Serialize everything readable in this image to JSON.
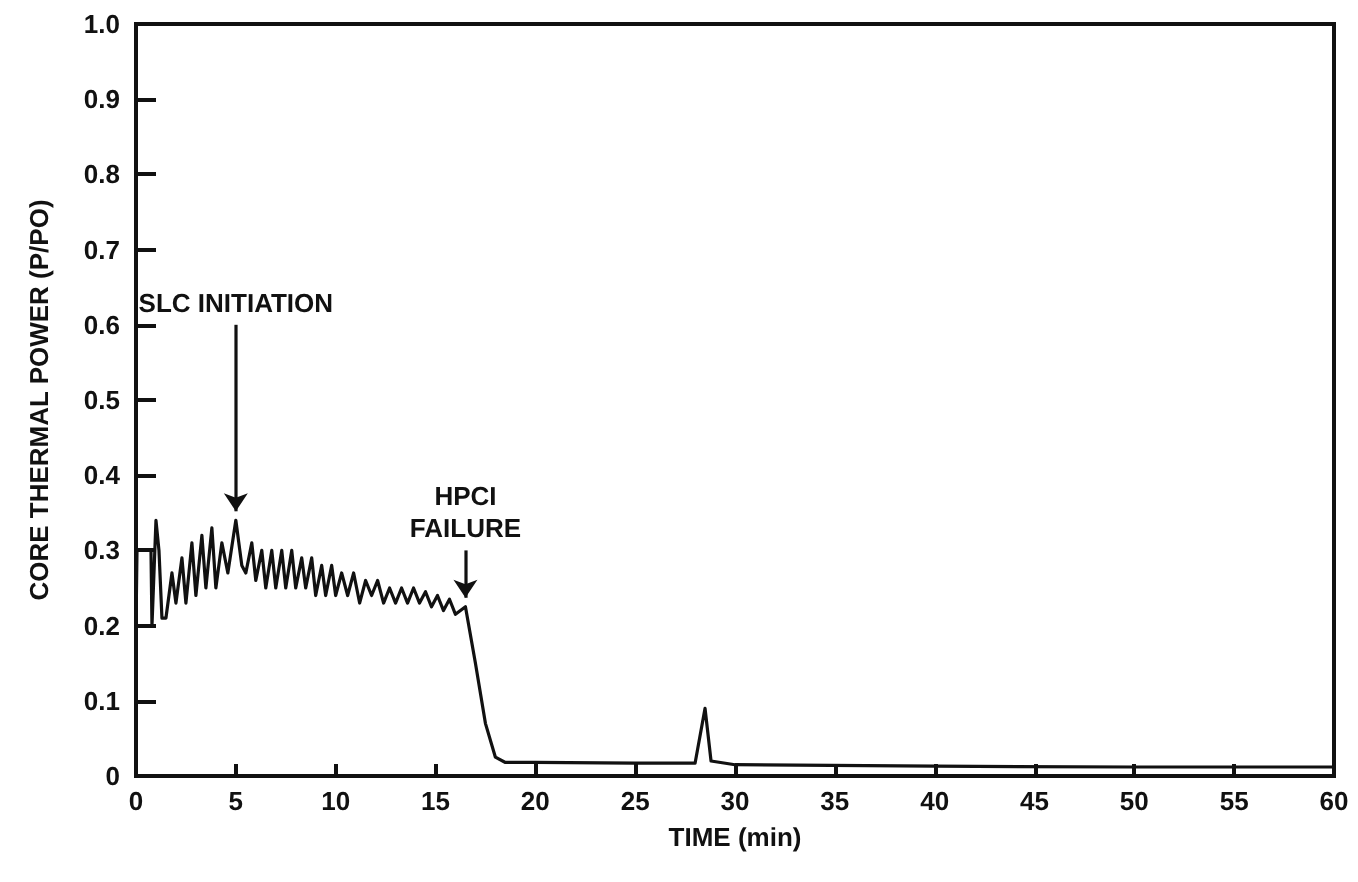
{
  "chart_data": {
    "type": "line",
    "xlabel": "TIME (min)",
    "ylabel": "CORE THERMAL POWER (P/PO)",
    "xlim": [
      0,
      60
    ],
    "xticks": [
      0,
      5,
      10,
      15,
      20,
      25,
      30,
      35,
      40,
      45,
      50,
      55,
      60
    ],
    "ylim": [
      0,
      1.0
    ],
    "yticks": [
      0,
      0.1,
      0.2,
      0.3,
      0.4,
      0.5,
      0.6,
      0.7,
      0.8,
      0.9,
      {
        "value": 1.0,
        "label": "1.0"
      }
    ],
    "grid": false,
    "marker": "none",
    "line_style": "solid",
    "annotations": [
      {
        "text": "SLC INITIATION",
        "x": 5,
        "y": 0.34
      },
      {
        "text": "HPCI\nFAILURE",
        "x": 16.5,
        "y": 0.225
      }
    ],
    "series": [
      {
        "color": "#111111",
        "x": [
          0,
          0.05,
          0.75,
          0.8,
          1.0,
          1.15,
          1.3,
          1.5,
          1.8,
          2.0,
          2.3,
          2.5,
          2.8,
          3.0,
          3.3,
          3.5,
          3.8,
          4.0,
          4.3,
          4.6,
          5.0,
          5.3,
          5.5,
          5.8,
          6.0,
          6.3,
          6.5,
          6.8,
          7.0,
          7.3,
          7.5,
          7.8,
          8.0,
          8.3,
          8.5,
          8.8,
          9.0,
          9.3,
          9.5,
          9.8,
          10.0,
          10.3,
          10.6,
          10.9,
          11.2,
          11.5,
          11.8,
          12.1,
          12.4,
          12.7,
          13.0,
          13.3,
          13.6,
          13.9,
          14.2,
          14.5,
          14.8,
          15.1,
          15.4,
          15.7,
          16.0,
          16.5,
          17.0,
          17.5,
          18.0,
          18.5,
          20,
          25,
          28,
          28.5,
          28.8,
          30,
          40,
          50,
          55,
          60
        ],
        "values": [
          0.2,
          0.3,
          0.3,
          0.2,
          0.34,
          0.3,
          0.21,
          0.21,
          0.27,
          0.23,
          0.29,
          0.23,
          0.31,
          0.24,
          0.32,
          0.25,
          0.33,
          0.25,
          0.31,
          0.27,
          0.34,
          0.28,
          0.27,
          0.31,
          0.26,
          0.3,
          0.25,
          0.3,
          0.25,
          0.3,
          0.25,
          0.3,
          0.25,
          0.29,
          0.25,
          0.29,
          0.24,
          0.28,
          0.24,
          0.28,
          0.24,
          0.27,
          0.24,
          0.27,
          0.23,
          0.26,
          0.24,
          0.26,
          0.23,
          0.25,
          0.23,
          0.25,
          0.23,
          0.25,
          0.23,
          0.245,
          0.225,
          0.24,
          0.22,
          0.235,
          0.215,
          0.225,
          0.15,
          0.07,
          0.025,
          0.018,
          0.018,
          0.017,
          0.017,
          0.09,
          0.02,
          0.015,
          0.013,
          0.012,
          0.012,
          0.012
        ]
      }
    ]
  }
}
